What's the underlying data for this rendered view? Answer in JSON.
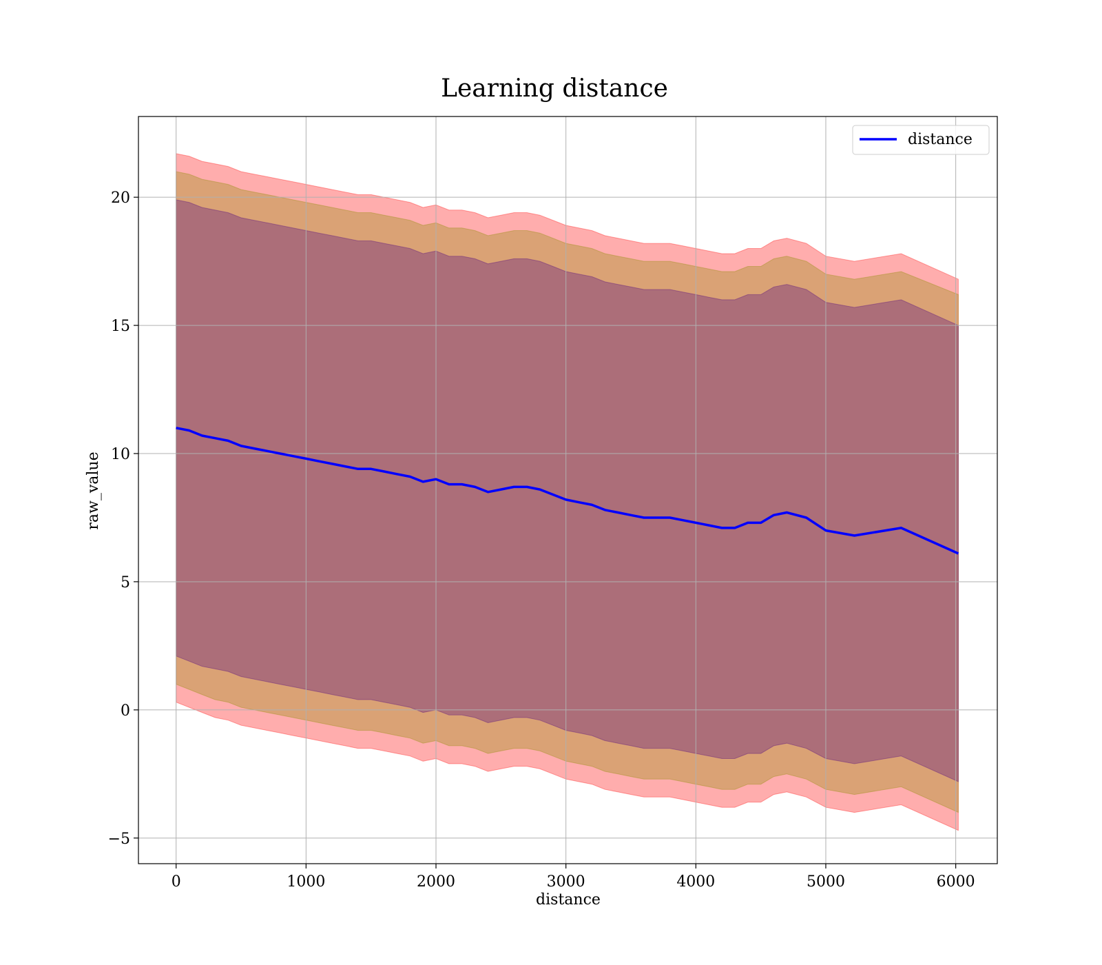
{
  "chart_data": {
    "type": "area",
    "title": "Learning distance",
    "xlabel": "distance",
    "ylabel": "raw_value",
    "xlim": [
      -290,
      6320
    ],
    "ylim": [
      -6,
      23.15
    ],
    "xticks": [
      0,
      1000,
      2000,
      3000,
      4000,
      5000,
      6000
    ],
    "xtick_labels": [
      "0",
      "1000",
      "2000",
      "3000",
      "4000",
      "5000",
      "6000"
    ],
    "yticks": [
      -5,
      0,
      5,
      10,
      15,
      20
    ],
    "ytick_labels": [
      "−5",
      "0",
      "5",
      "10",
      "15",
      "20"
    ],
    "grid": true,
    "legend": {
      "placement": "top-right",
      "entries": [
        "distance"
      ]
    },
    "colors": {
      "line": "#0000ff",
      "outer_band": "#ff0000",
      "middle_band": "#8b8b00",
      "inner_band": "#4b0082",
      "grid": "#b0b0b0",
      "axes": "#000000"
    },
    "x": [
      0,
      100,
      200,
      300,
      400,
      500,
      600,
      700,
      800,
      900,
      1000,
      1100,
      1200,
      1300,
      1400,
      1500,
      1600,
      1700,
      1800,
      1900,
      2000,
      2100,
      2200,
      2300,
      2400,
      2500,
      2600,
      2700,
      2800,
      2900,
      3000,
      3100,
      3200,
      3300,
      3400,
      3500,
      3600,
      3700,
      3800,
      3900,
      4000,
      4100,
      4200,
      4300,
      4400,
      4500,
      4600,
      4700,
      4850,
      5000,
      5220,
      5580,
      6020
    ],
    "series": [
      {
        "name": "distance",
        "values": [
          11.0,
          10.9,
          10.7,
          10.6,
          10.5,
          10.3,
          10.2,
          10.1,
          10.0,
          9.9,
          9.8,
          9.7,
          9.6,
          9.5,
          9.4,
          9.4,
          9.3,
          9.2,
          9.1,
          8.9,
          9.0,
          8.8,
          8.8,
          8.7,
          8.5,
          8.6,
          8.7,
          8.7,
          8.6,
          8.4,
          8.2,
          8.1,
          8.0,
          7.8,
          7.7,
          7.6,
          7.5,
          7.5,
          7.5,
          7.4,
          7.3,
          7.2,
          7.1,
          7.1,
          7.3,
          7.3,
          7.6,
          7.7,
          7.5,
          7.0,
          6.8,
          7.1,
          6.1
        ]
      }
    ],
    "bands": [
      {
        "color": "#ff0000",
        "lower": [
          0.3,
          0.1,
          -0.1,
          -0.3,
          -0.4,
          -0.6,
          -0.7,
          -0.8,
          -0.9,
          -1.0,
          -1.1,
          -1.2,
          -1.3,
          -1.4,
          -1.5,
          -1.5,
          -1.6,
          -1.7,
          -1.8,
          -2.0,
          -1.9,
          -2.1,
          -2.1,
          -2.2,
          -2.4,
          -2.3,
          -2.2,
          -2.2,
          -2.3,
          -2.5,
          -2.7,
          -2.8,
          -2.9,
          -3.1,
          -3.2,
          -3.3,
          -3.4,
          -3.4,
          -3.4,
          -3.5,
          -3.6,
          -3.7,
          -3.8,
          -3.8,
          -3.6,
          -3.6,
          -3.3,
          -3.2,
          -3.4,
          -3.8,
          -4.0,
          -3.7,
          -4.7
        ],
        "upper": [
          21.7,
          21.6,
          21.4,
          21.3,
          21.2,
          21.0,
          20.9,
          20.8,
          20.7,
          20.6,
          20.5,
          20.4,
          20.3,
          20.2,
          20.1,
          20.1,
          20.0,
          19.9,
          19.8,
          19.6,
          19.7,
          19.5,
          19.5,
          19.4,
          19.2,
          19.3,
          19.4,
          19.4,
          19.3,
          19.1,
          18.9,
          18.8,
          18.7,
          18.5,
          18.4,
          18.3,
          18.2,
          18.2,
          18.2,
          18.1,
          18.0,
          17.9,
          17.8,
          17.8,
          18.0,
          18.0,
          18.3,
          18.4,
          18.2,
          17.7,
          17.5,
          17.8,
          16.8
        ]
      },
      {
        "color": "#8b8b00",
        "lower": [
          1.0,
          0.8,
          0.6,
          0.4,
          0.3,
          0.1,
          0.0,
          -0.1,
          -0.2,
          -0.3,
          -0.4,
          -0.5,
          -0.6,
          -0.7,
          -0.8,
          -0.8,
          -0.9,
          -1.0,
          -1.1,
          -1.3,
          -1.2,
          -1.4,
          -1.4,
          -1.5,
          -1.7,
          -1.6,
          -1.5,
          -1.5,
          -1.6,
          -1.8,
          -2.0,
          -2.1,
          -2.2,
          -2.4,
          -2.5,
          -2.6,
          -2.7,
          -2.7,
          -2.7,
          -2.8,
          -2.9,
          -3.0,
          -3.1,
          -3.1,
          -2.9,
          -2.9,
          -2.6,
          -2.5,
          -2.7,
          -3.1,
          -3.3,
          -3.0,
          -4.0
        ],
        "upper": [
          21.0,
          20.9,
          20.7,
          20.6,
          20.5,
          20.3,
          20.2,
          20.1,
          20.0,
          19.9,
          19.8,
          19.7,
          19.6,
          19.5,
          19.4,
          19.4,
          19.3,
          19.2,
          19.1,
          18.9,
          19.0,
          18.8,
          18.8,
          18.7,
          18.5,
          18.6,
          18.7,
          18.7,
          18.6,
          18.4,
          18.2,
          18.1,
          18.0,
          17.8,
          17.7,
          17.6,
          17.5,
          17.5,
          17.5,
          17.4,
          17.3,
          17.2,
          17.1,
          17.1,
          17.3,
          17.3,
          17.6,
          17.7,
          17.5,
          17.0,
          16.8,
          17.1,
          16.2
        ]
      },
      {
        "color": "#4b0082",
        "lower": [
          2.1,
          1.9,
          1.7,
          1.6,
          1.5,
          1.3,
          1.2,
          1.1,
          1.0,
          0.9,
          0.8,
          0.7,
          0.6,
          0.5,
          0.4,
          0.4,
          0.3,
          0.2,
          0.1,
          -0.1,
          0.0,
          -0.2,
          -0.2,
          -0.3,
          -0.5,
          -0.4,
          -0.3,
          -0.3,
          -0.4,
          -0.6,
          -0.8,
          -0.9,
          -1.0,
          -1.2,
          -1.3,
          -1.4,
          -1.5,
          -1.5,
          -1.5,
          -1.6,
          -1.7,
          -1.8,
          -1.9,
          -1.9,
          -1.7,
          -1.7,
          -1.4,
          -1.3,
          -1.5,
          -1.9,
          -2.1,
          -1.8,
          -2.8
        ],
        "upper": [
          19.9,
          19.8,
          19.6,
          19.5,
          19.4,
          19.2,
          19.1,
          19.0,
          18.9,
          18.8,
          18.7,
          18.6,
          18.5,
          18.4,
          18.3,
          18.3,
          18.2,
          18.1,
          18.0,
          17.8,
          17.9,
          17.7,
          17.7,
          17.6,
          17.4,
          17.5,
          17.6,
          17.6,
          17.5,
          17.3,
          17.1,
          17.0,
          16.9,
          16.7,
          16.6,
          16.5,
          16.4,
          16.4,
          16.4,
          16.3,
          16.2,
          16.1,
          16.0,
          16.0,
          16.2,
          16.2,
          16.5,
          16.6,
          16.4,
          15.9,
          15.7,
          16.0,
          15.0
        ]
      }
    ]
  }
}
